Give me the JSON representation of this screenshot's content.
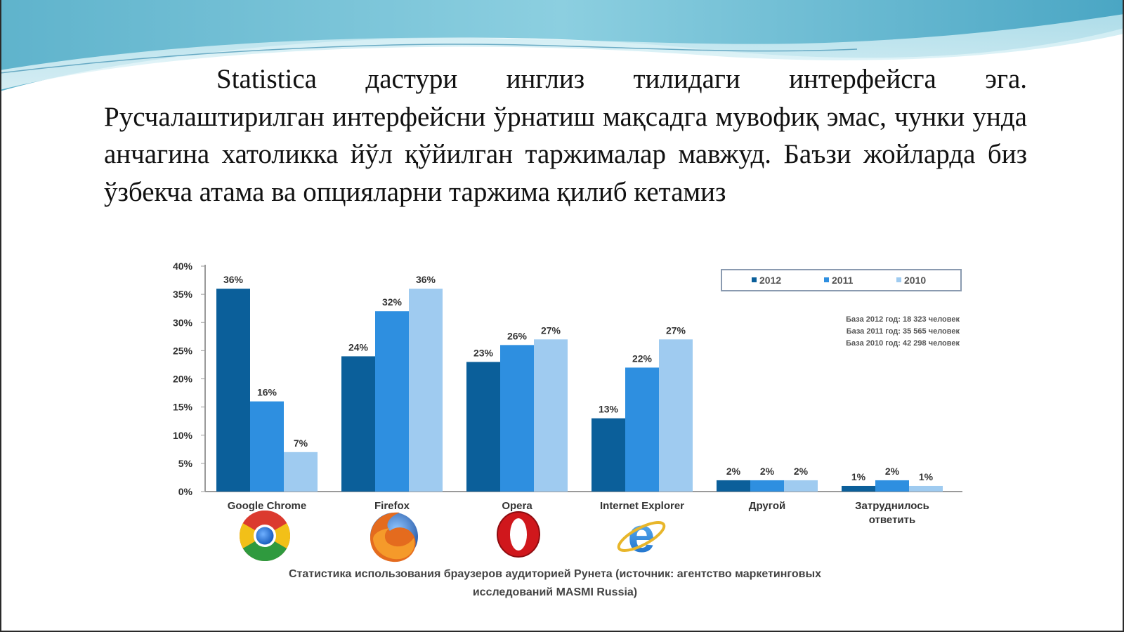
{
  "slide": {
    "paragraph": "Statistica дастури инглиз тилидаги интерфейсга эга. Русчалаштирилган интерфейсни ўрнатиш мақсадга мувофиқ эмас, чунки унда анчагина хатоликка йўл қўйилган таржималар мавжуд. Баъзи жойларда биз ўзбекча атама ва опцияларни таржима қилиб кетамиз"
  },
  "chart_data": {
    "type": "bar",
    "categories": [
      "Google Chrome",
      "Firefox",
      "Opera",
      "Internet Explorer",
      "Другой",
      "Затруднилось ответить"
    ],
    "series": [
      {
        "name": "2012",
        "values": [
          36,
          24,
          23,
          13,
          2,
          1
        ],
        "color": "#0b5f9a"
      },
      {
        "name": "2011",
        "values": [
          16,
          32,
          26,
          22,
          2,
          2
        ],
        "color": "#2e8fe0"
      },
      {
        "name": "2010",
        "values": [
          7,
          36,
          27,
          27,
          2,
          1
        ],
        "color": "#9fcbf0"
      }
    ],
    "ylim": [
      0,
      40
    ],
    "yticks": [
      0,
      5,
      10,
      15,
      20,
      25,
      30,
      35,
      40
    ],
    "ytick_labels": [
      "0%",
      "5%",
      "10%",
      "15%",
      "20%",
      "25%",
      "30%",
      "35%",
      "40%"
    ],
    "value_suffix": "%",
    "legend_position": "top-right",
    "grid": false,
    "notes": [
      "База 2012 год: 18 323 человек",
      "База 2011 год: 35 565 человек",
      "База 2010 год: 42 298 человек"
    ],
    "category_icons": [
      "chrome-logo",
      "firefox-logo",
      "opera-logo",
      "internet-explorer-logo",
      "",
      ""
    ],
    "caption": "Статистика использования браузеров аудиторией Рунета (источник: агентство маркетинговых исследований MASMI Russia)"
  }
}
